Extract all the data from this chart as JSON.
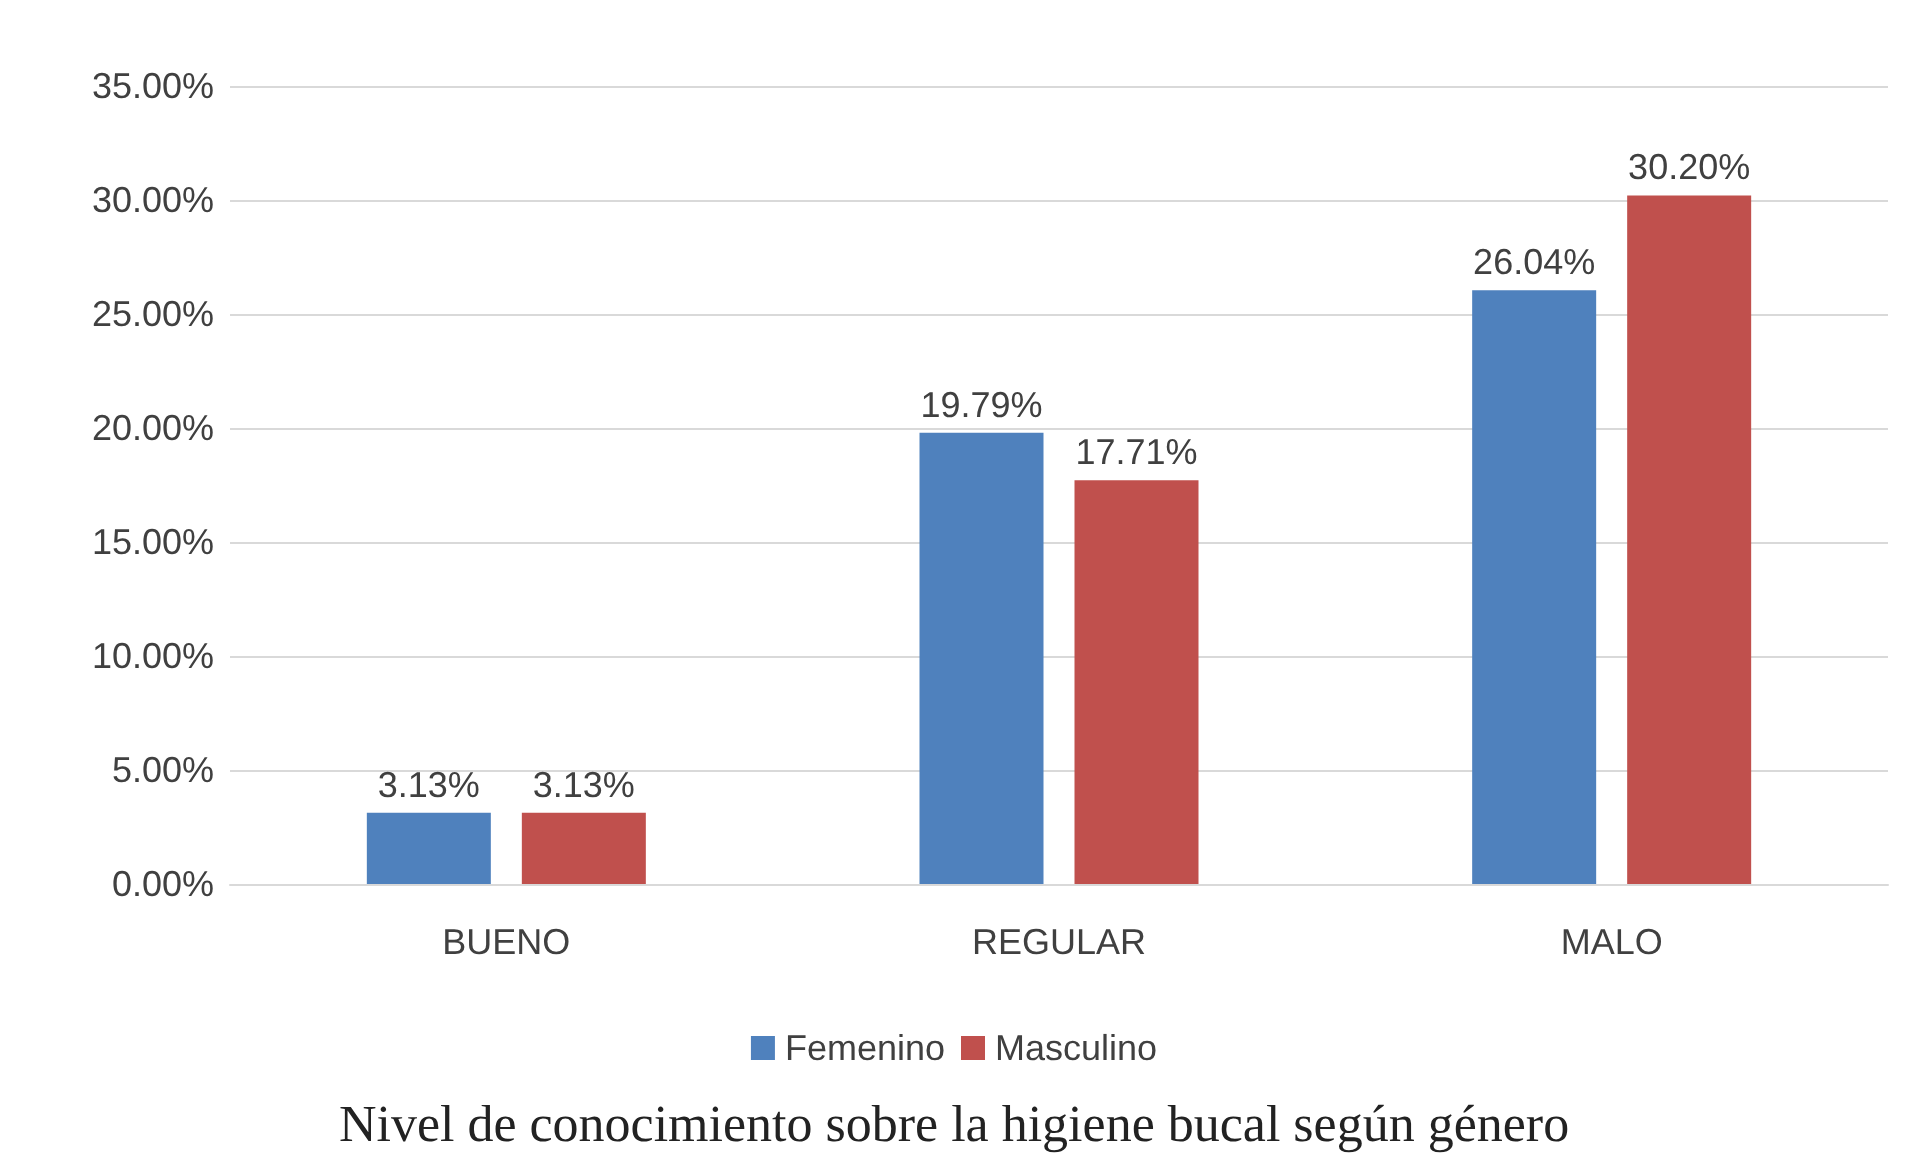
{
  "chart_data": {
    "type": "bar",
    "title": "Nivel de conocimiento sobre la higiene bucal según género",
    "categories": [
      "BUENO",
      "REGULAR",
      "MALO"
    ],
    "series": [
      {
        "name": "Femenino",
        "color": "#4f81bd",
        "values": [
          3.13,
          19.79,
          26.04
        ],
        "value_labels": [
          "3.13%",
          "19.79%",
          "26.04%"
        ]
      },
      {
        "name": "Masculino",
        "color": "#c0504d",
        "values": [
          3.13,
          17.71,
          30.2
        ],
        "value_labels": [
          "3.13%",
          "17.71%",
          "30.20%"
        ]
      }
    ],
    "ylim": [
      0,
      35
    ],
    "yticks": [
      {
        "value": 0,
        "label": "0.00%"
      },
      {
        "value": 5,
        "label": "5.00%"
      },
      {
        "value": 10,
        "label": "10.00%"
      },
      {
        "value": 15,
        "label": "15.00%"
      },
      {
        "value": 20,
        "label": "20.00%"
      },
      {
        "value": 25,
        "label": "25.00%"
      },
      {
        "value": 30,
        "label": "30.00%"
      },
      {
        "value": 35,
        "label": "35.00%"
      }
    ],
    "grid": "y",
    "legend": "bottom"
  }
}
